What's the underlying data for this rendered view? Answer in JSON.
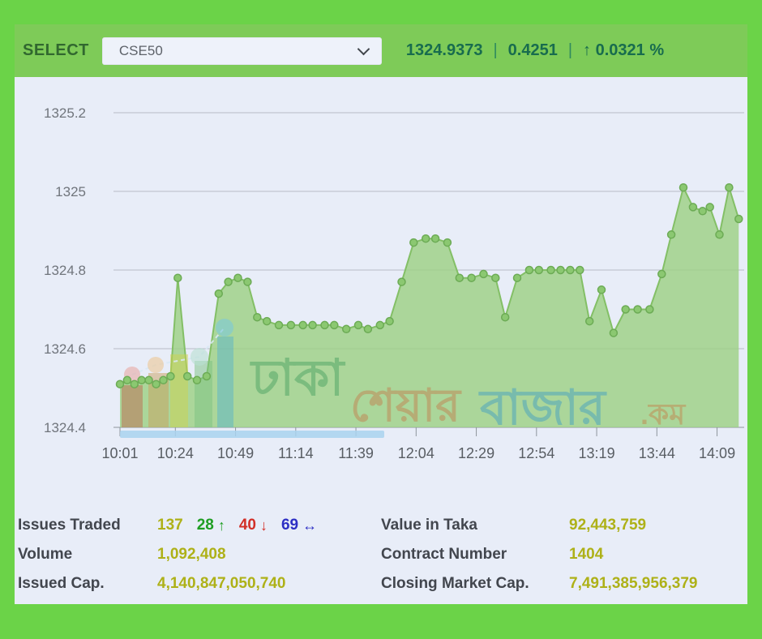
{
  "header": {
    "select_label": "SELECT",
    "dropdown_value": "CSE50",
    "index_value": "1324.9373",
    "change": "0.4251",
    "up_arrow": "↑",
    "change_percent": "0.0321 %",
    "separator": "|"
  },
  "watermark": {
    "site_parts": [
      {
        "text": "ঢাকা",
        "color": "#55a868"
      },
      {
        "text": "শেয়ার",
        "color": "#bf8a58"
      },
      {
        "text": "বাজার",
        "color": "#4fa6bd"
      },
      {
        "text": ".কম",
        "color": "#c08e56"
      }
    ],
    "underline": "#a9d2ef",
    "bar_colors": [
      "#bd6a50",
      "#c9a05e",
      "#cdd14e",
      "#7cc282",
      "#59b4c8"
    ],
    "dot_colors": [
      "#e8a8a4",
      "#edc695",
      "#b9e0d2",
      "#7cc8da"
    ]
  },
  "chart_data": {
    "type": "area",
    "series_name": "CSE50",
    "ylim": [
      1324.4,
      1325.2
    ],
    "yticks": [
      1325.2,
      1325,
      1324.8,
      1324.6,
      1324.4
    ],
    "ytick_labels": [
      "1325.2",
      "1325",
      "1324.8",
      "1324.6",
      "1324.4"
    ],
    "xticks": [
      "10:01",
      "10:24",
      "10:49",
      "11:14",
      "11:39",
      "12:04",
      "12:29",
      "12:54",
      "13:19",
      "13:44",
      "14:09"
    ],
    "grid": true,
    "points": [
      [
        "10:01",
        1324.51
      ],
      [
        "10:04",
        1324.52
      ],
      [
        "10:07",
        1324.51
      ],
      [
        "10:10",
        1324.52
      ],
      [
        "10:13",
        1324.52
      ],
      [
        "10:16",
        1324.51
      ],
      [
        "10:19",
        1324.52
      ],
      [
        "10:22",
        1324.53
      ],
      [
        "10:25",
        1324.78
      ],
      [
        "10:29",
        1324.53
      ],
      [
        "10:33",
        1324.52
      ],
      [
        "10:37",
        1324.53
      ],
      [
        "10:42",
        1324.74
      ],
      [
        "10:46",
        1324.77
      ],
      [
        "10:50",
        1324.78
      ],
      [
        "10:54",
        1324.77
      ],
      [
        "10:58",
        1324.68
      ],
      [
        "11:02",
        1324.67
      ],
      [
        "11:07",
        1324.66
      ],
      [
        "11:12",
        1324.66
      ],
      [
        "11:17",
        1324.66
      ],
      [
        "11:21",
        1324.66
      ],
      [
        "11:26",
        1324.66
      ],
      [
        "11:30",
        1324.66
      ],
      [
        "11:35",
        1324.65
      ],
      [
        "11:40",
        1324.66
      ],
      [
        "11:44",
        1324.65
      ],
      [
        "11:49",
        1324.66
      ],
      [
        "11:53",
        1324.67
      ],
      [
        "11:58",
        1324.77
      ],
      [
        "12:03",
        1324.87
      ],
      [
        "12:08",
        1324.88
      ],
      [
        "12:12",
        1324.88
      ],
      [
        "12:17",
        1324.87
      ],
      [
        "12:22",
        1324.78
      ],
      [
        "12:27",
        1324.78
      ],
      [
        "12:32",
        1324.79
      ],
      [
        "12:37",
        1324.78
      ],
      [
        "12:41",
        1324.68
      ],
      [
        "12:46",
        1324.78
      ],
      [
        "12:51",
        1324.8
      ],
      [
        "12:55",
        1324.8
      ],
      [
        "13:00",
        1324.8
      ],
      [
        "13:04",
        1324.8
      ],
      [
        "13:08",
        1324.8
      ],
      [
        "13:12",
        1324.8
      ],
      [
        "13:16",
        1324.67
      ],
      [
        "13:21",
        1324.75
      ],
      [
        "13:26",
        1324.64
      ],
      [
        "13:31",
        1324.7
      ],
      [
        "13:36",
        1324.7
      ],
      [
        "13:41",
        1324.7
      ],
      [
        "13:46",
        1324.79
      ],
      [
        "13:50",
        1324.89
      ],
      [
        "13:55",
        1325.01
      ],
      [
        "13:59",
        1324.96
      ],
      [
        "14:03",
        1324.95
      ],
      [
        "14:06",
        1324.96
      ],
      [
        "14:10",
        1324.89
      ],
      [
        "14:14",
        1325.01
      ],
      [
        "14:18",
        1324.93
      ]
    ]
  },
  "stats": {
    "left": [
      {
        "label": "Issues Traded",
        "value": "137"
      },
      {
        "label": "Volume",
        "value": "1,092,408"
      },
      {
        "label": "Issued Cap.",
        "value": "4,140,847,050,740"
      }
    ],
    "right": [
      {
        "label": "Value in Taka",
        "value": "92,443,759"
      },
      {
        "label": "Contract Number",
        "value": "1404"
      },
      {
        "label": "Closing Market Cap.",
        "value": "7,491,385,956,379"
      }
    ],
    "breakdown": {
      "advanced": "28",
      "up_arrow": "↑",
      "declined": "40",
      "down_arrow": "↓",
      "unchanged": "69",
      "flat_arrow": "↔"
    }
  },
  "colors": {
    "frame": "#6bd348",
    "header_band": "#7ecb58",
    "panel_bg": "#e8edf8",
    "select_label": "#31682f",
    "header_value": "#186c4e",
    "dropdown_bg": "#eef2fa",
    "grid": "#b7bcc6",
    "axis": "#8e959d",
    "y_label": "#70757c",
    "x_label": "#585d63",
    "area_fill": "#9bcf82",
    "line": "#83bf66",
    "marker": "#8bc871",
    "marker_stroke": "#6cab55",
    "stat_label": "#42464e",
    "stat_value": "#aeb118",
    "advanced_green": "#1f9e23",
    "declined_red": "#d22f27",
    "unchanged_blue": "#2d2fc4"
  }
}
